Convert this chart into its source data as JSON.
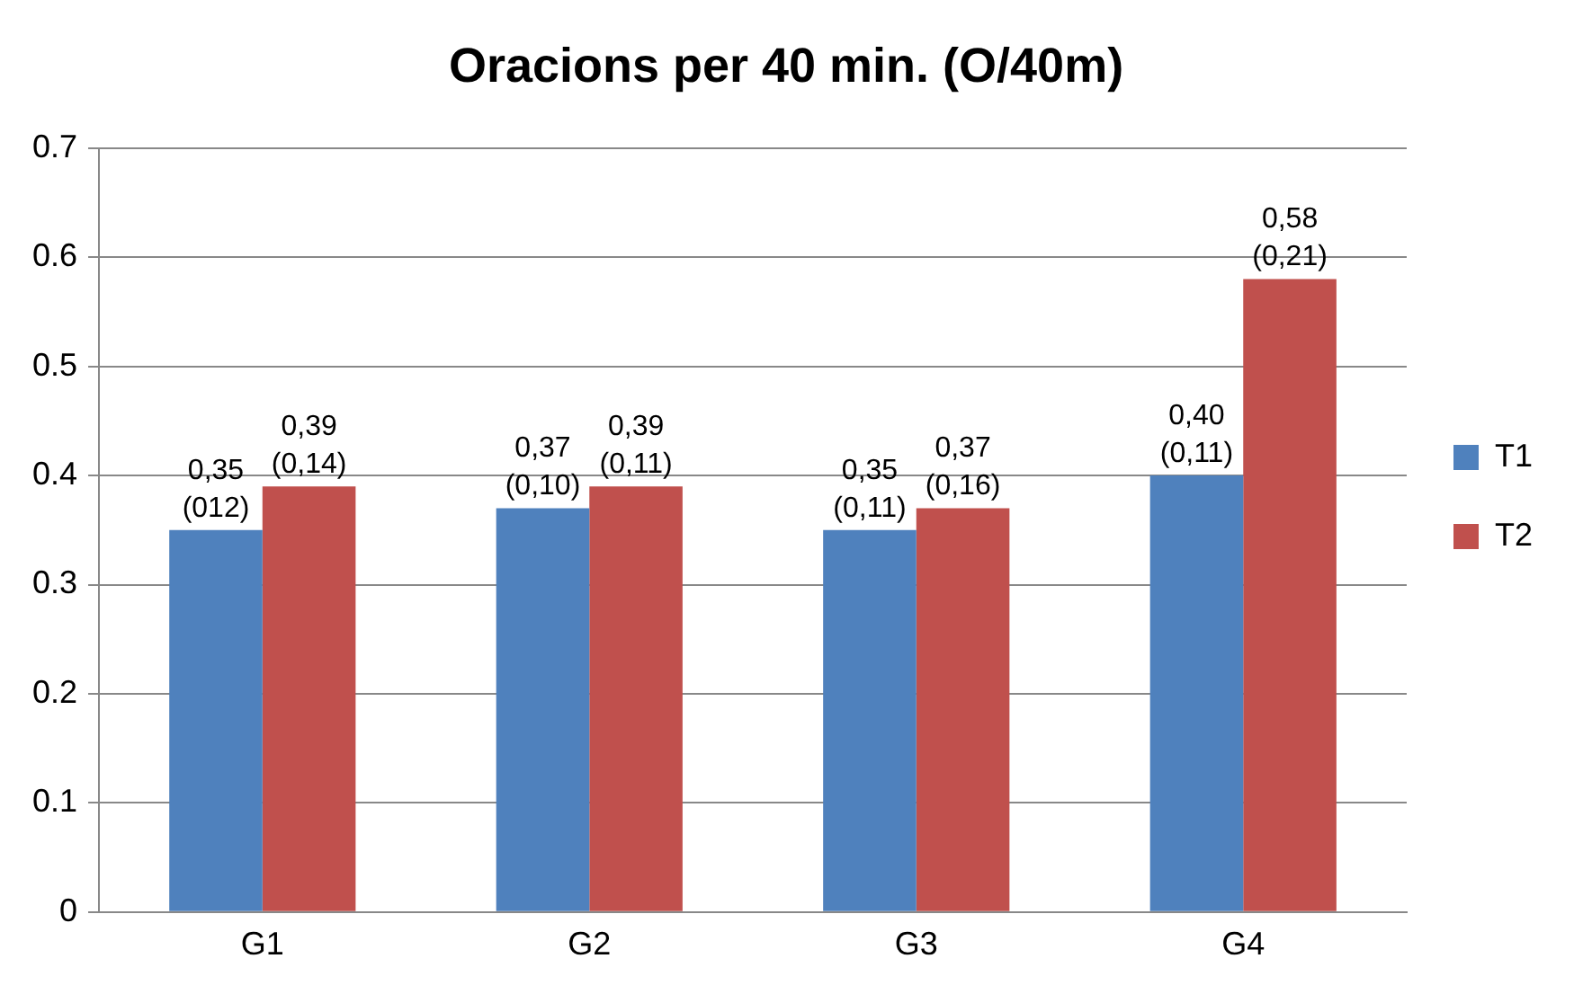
{
  "chart_data": {
    "type": "bar",
    "title": "Oracions per 40 min. (O/40m)",
    "categories": [
      "G1",
      "G2",
      "G3",
      "G4"
    ],
    "series": [
      {
        "name": "T1",
        "color": "#4f81bd",
        "values": [
          0.35,
          0.37,
          0.35,
          0.4
        ],
        "value_labels": [
          "0,35 (012)",
          "0,37 (0,10)",
          "0,35 (0,11)",
          "0,40 (0,11)"
        ]
      },
      {
        "name": "T2",
        "color": "#c0504d",
        "values": [
          0.39,
          0.39,
          0.37,
          0.58
        ],
        "value_labels": [
          "0,39 (0,14)",
          "0,39 (0,11)",
          "0,37 (0,16)",
          "0,58 (0,21)"
        ]
      }
    ],
    "ylim": [
      0,
      0.7
    ],
    "yticks": [
      0,
      0.1,
      0.2,
      0.3,
      0.4,
      0.5,
      0.6,
      0.7
    ],
    "grid": "y",
    "legend": "right"
  }
}
